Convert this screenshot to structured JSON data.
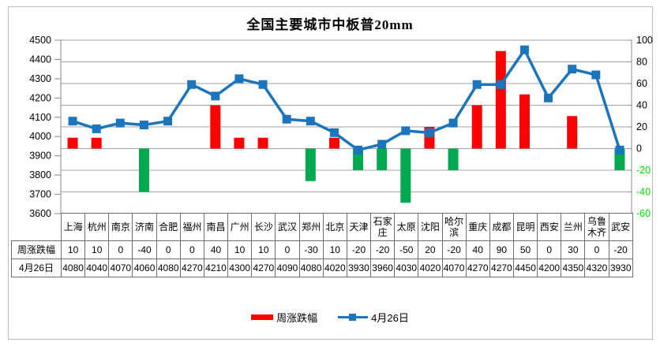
{
  "title": "全国主要城市中板普20mm",
  "chart_data": {
    "type": "bar+line",
    "categories": [
      "上海",
      "杭州",
      "南京",
      "济南",
      "合肥",
      "福州",
      "南昌",
      "广州",
      "长沙",
      "武汉",
      "郑州",
      "北京",
      "天津",
      "石家庄",
      "太原",
      "沈阳",
      "哈尔滨",
      "重庆",
      "成都",
      "昆明",
      "西安",
      "兰州",
      "乌鲁木齐",
      "武安"
    ],
    "series": [
      {
        "name": "周涨跌幅",
        "type": "bar",
        "axis": "right",
        "positive_color": "#FF0000",
        "negative_color": "#00A84F",
        "values": [
          10,
          10,
          0,
          -40,
          0,
          0,
          40,
          10,
          10,
          0,
          -30,
          10,
          -20,
          -20,
          -50,
          20,
          -20,
          40,
          90,
          50,
          0,
          30,
          0,
          -20
        ]
      },
      {
        "name": "4月26日",
        "type": "line",
        "axis": "left",
        "color": "#1B75BC",
        "marker": "square",
        "values": [
          4080,
          4040,
          4070,
          4060,
          4080,
          4270,
          4210,
          4300,
          4270,
          4090,
          4080,
          4020,
          3930,
          3960,
          4030,
          4020,
          4070,
          4270,
          4270,
          4450,
          4200,
          4350,
          4320,
          3930
        ]
      }
    ],
    "left_axis": {
      "min": 3600,
      "max": 4500,
      "step": 100,
      "tick_labels": [
        "4500",
        "4400",
        "4300",
        "4200",
        "4100",
        "4000",
        "3900",
        "3800",
        "3700",
        "3600"
      ]
    },
    "right_axis": {
      "min": -60,
      "max": 100,
      "step": 20,
      "tick_labels": [
        "100",
        "80",
        "60",
        "40",
        "20",
        "0",
        "-20",
        "-40",
        "-60"
      ],
      "negative_label_color": "#00E100"
    },
    "grid": true,
    "gridline_color": "#a3a3a3",
    "axis_line_color": "#8a8a8a",
    "legend_position": "bottom"
  },
  "table": {
    "row_headers": [
      "周涨跌幅",
      "4月26日"
    ],
    "columns": [
      "上海",
      "杭州",
      "南京",
      "济南",
      "合肥",
      "福州",
      "南昌",
      "广州",
      "长沙",
      "武汉",
      "郑州",
      "北京",
      "天津",
      "石家庄",
      "太原",
      "沈阳",
      "哈尔滨",
      "重庆",
      "成都",
      "昆明",
      "西安",
      "兰州",
      "乌鲁木齐",
      "武安"
    ],
    "rows": [
      [
        "10",
        "10",
        "0",
        "-40",
        "0",
        "0",
        "40",
        "10",
        "10",
        "0",
        "-30",
        "10",
        "-20",
        "-20",
        "-50",
        "20",
        "-20",
        "40",
        "90",
        "50",
        "0",
        "30",
        "0",
        "-20"
      ],
      [
        "4080",
        "4040",
        "4070",
        "4060",
        "4080",
        "4270",
        "4210",
        "4300",
        "4270",
        "4090",
        "4080",
        "4020",
        "3930",
        "3960",
        "4030",
        "4020",
        "4070",
        "4270",
        "4270",
        "4450",
        "4200",
        "4350",
        "4320",
        "3930"
      ]
    ]
  },
  "legend": {
    "items": [
      {
        "label": "周涨跌幅",
        "swatch": "bar",
        "color": "#FF0000"
      },
      {
        "label": "4月26日",
        "swatch": "line-marker",
        "color": "#1B75BC"
      }
    ]
  }
}
